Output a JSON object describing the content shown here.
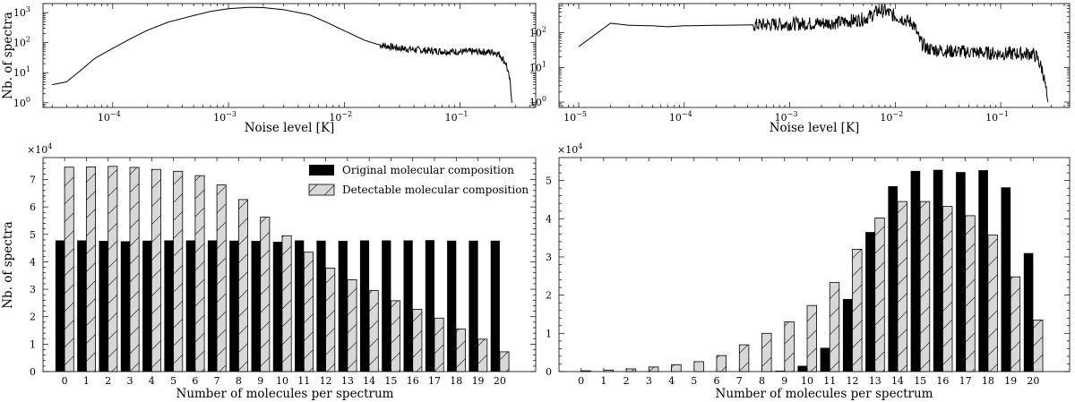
{
  "chart_data": [
    {
      "id": "tl",
      "type": "line",
      "scale": "log-log",
      "xlabel": "Noise level [K]",
      "ylabel": "Nb. of spectra",
      "xlim": [
        2.5e-05,
        0.45
      ],
      "ylim": [
        0.7,
        2000
      ],
      "xticks": [
        {
          "v": 0.0001,
          "label": "10",
          "exp": "−4"
        },
        {
          "v": 0.001,
          "label": "10",
          "exp": "−3"
        },
        {
          "v": 0.01,
          "label": "10",
          "exp": "−2"
        },
        {
          "v": 0.1,
          "label": "10",
          "exp": "−1"
        }
      ],
      "yticks": [
        {
          "v": 1,
          "label": "10",
          "exp": "0"
        },
        {
          "v": 10,
          "label": "10",
          "exp": "1"
        },
        {
          "v": 100,
          "label": "10",
          "exp": "2"
        },
        {
          "v": 1000,
          "label": "10",
          "exp": "3"
        }
      ],
      "points": [
        [
          3e-05,
          4
        ],
        [
          4e-05,
          5
        ],
        [
          5e-05,
          10
        ],
        [
          6e-05,
          18
        ],
        [
          7e-05,
          30
        ],
        [
          0.0001,
          65
        ],
        [
          0.00015,
          150
        ],
        [
          0.0002,
          260
        ],
        [
          0.0003,
          480
        ],
        [
          0.0005,
          800
        ],
        [
          0.0007,
          1100
        ],
        [
          0.001,
          1350
        ],
        [
          0.0015,
          1500
        ],
        [
          0.002,
          1470
        ],
        [
          0.003,
          1250
        ],
        [
          0.005,
          850
        ],
        [
          0.007,
          480
        ],
        [
          0.01,
          250
        ],
        [
          0.015,
          120
        ],
        [
          0.02,
          85
        ],
        [
          0.03,
          65
        ],
        [
          0.05,
          55
        ],
        [
          0.07,
          52
        ],
        [
          0.1,
          50
        ],
        [
          0.15,
          50
        ],
        [
          0.2,
          48
        ],
        [
          0.22,
          40
        ],
        [
          0.25,
          20
        ],
        [
          0.27,
          5
        ],
        [
          0.28,
          1
        ]
      ],
      "noisy_from": 0.02,
      "noise_amp": 0.12
    },
    {
      "id": "tr",
      "type": "line",
      "scale": "log-log",
      "xlabel": "Noise level [K]",
      "ylabel": "",
      "xlim": [
        6.5e-06,
        0.45
      ],
      "ylim": [
        0.7,
        700
      ],
      "xticks": [
        {
          "v": 1e-05,
          "label": "10",
          "exp": "−5"
        },
        {
          "v": 0.0001,
          "label": "10",
          "exp": "−4"
        },
        {
          "v": 0.001,
          "label": "10",
          "exp": "−3"
        },
        {
          "v": 0.01,
          "label": "10",
          "exp": "−2"
        },
        {
          "v": 0.1,
          "label": "10",
          "exp": "−1"
        }
      ],
      "yticks": [
        {
          "v": 1,
          "label": "10",
          "exp": "0"
        },
        {
          "v": 10,
          "label": "10",
          "exp": "1"
        },
        {
          "v": 100,
          "label": "10",
          "exp": "2"
        }
      ],
      "points": [
        [
          1e-05,
          40
        ],
        [
          2e-05,
          190
        ],
        [
          3e-05,
          165
        ],
        [
          5e-05,
          160
        ],
        [
          7e-05,
          150
        ],
        [
          0.0001,
          160
        ],
        [
          0.0002,
          165
        ],
        [
          0.0005,
          170
        ],
        [
          0.001,
          180
        ],
        [
          0.002,
          190
        ],
        [
          0.003,
          200
        ],
        [
          0.005,
          250
        ],
        [
          0.006,
          320
        ],
        [
          0.007,
          450
        ],
        [
          0.008,
          420
        ],
        [
          0.01,
          300
        ],
        [
          0.012,
          250
        ],
        [
          0.015,
          180
        ],
        [
          0.017,
          60
        ],
        [
          0.02,
          35
        ],
        [
          0.03,
          30
        ],
        [
          0.05,
          28
        ],
        [
          0.1,
          25
        ],
        [
          0.15,
          25
        ],
        [
          0.2,
          25
        ],
        [
          0.22,
          20
        ],
        [
          0.25,
          8
        ],
        [
          0.27,
          2
        ],
        [
          0.28,
          1
        ]
      ],
      "noisy_from": 0.00045,
      "noise_amp": 0.2
    },
    {
      "id": "bl",
      "type": "bar",
      "xlabel": "Number of molecules per spectrum",
      "ylabel": "Nb. of spectra",
      "multiplier": {
        "base": "×10",
        "exp": "4"
      },
      "ylim": [
        0,
        7.8
      ],
      "yticks": [
        0,
        1,
        2,
        3,
        4,
        5,
        6,
        7
      ],
      "categories": [
        "0",
        "1",
        "2",
        "3",
        "4",
        "5",
        "6",
        "7",
        "8",
        "9",
        "10",
        "11",
        "12",
        "13",
        "14",
        "15",
        "16",
        "17",
        "18",
        "19",
        "20"
      ],
      "series": [
        {
          "name": "Original molecular composition",
          "style": "solid",
          "values": [
            4.78,
            4.78,
            4.76,
            4.75,
            4.77,
            4.78,
            4.78,
            4.78,
            4.77,
            4.76,
            4.73,
            4.78,
            4.77,
            4.76,
            4.78,
            4.78,
            4.78,
            4.79,
            4.77,
            4.77,
            4.77
          ]
        },
        {
          "name": "Detectable molecular composition",
          "style": "hatched",
          "values": [
            7.45,
            7.46,
            7.48,
            7.44,
            7.37,
            7.3,
            7.14,
            6.8,
            6.27,
            5.63,
            4.95,
            4.35,
            3.77,
            3.35,
            2.95,
            2.58,
            2.27,
            1.95,
            1.55,
            1.18,
            0.72
          ]
        }
      ],
      "legend": "top-right"
    },
    {
      "id": "br",
      "type": "bar",
      "xlabel": "Number of molecules per spectrum",
      "ylabel": "",
      "multiplier": {
        "base": "×10",
        "exp": "4"
      },
      "ylim": [
        0,
        5.6
      ],
      "yticks": [
        0,
        1,
        2,
        3,
        4,
        5
      ],
      "categories": [
        "0",
        "1",
        "2",
        "3",
        "4",
        "5",
        "6",
        "7",
        "8",
        "9",
        "10",
        "11",
        "12",
        "13",
        "14",
        "15",
        "16",
        "17",
        "18",
        "19",
        "20"
      ],
      "series": [
        {
          "name": "Original molecular composition",
          "style": "solid",
          "values": [
            0,
            0,
            0,
            0,
            0,
            0,
            0,
            0,
            0,
            0.02,
            0.15,
            0.62,
            1.9,
            3.65,
            4.85,
            5.25,
            5.28,
            5.22,
            5.27,
            4.82,
            3.1
          ]
        },
        {
          "name": "Detectable molecular composition",
          "style": "hatched",
          "values": [
            0.02,
            0.04,
            0.07,
            0.12,
            0.18,
            0.26,
            0.42,
            0.7,
            1.0,
            1.3,
            1.73,
            2.33,
            3.2,
            4.02,
            4.45,
            4.45,
            4.32,
            4.08,
            3.57,
            2.48,
            1.35
          ]
        }
      ]
    }
  ]
}
